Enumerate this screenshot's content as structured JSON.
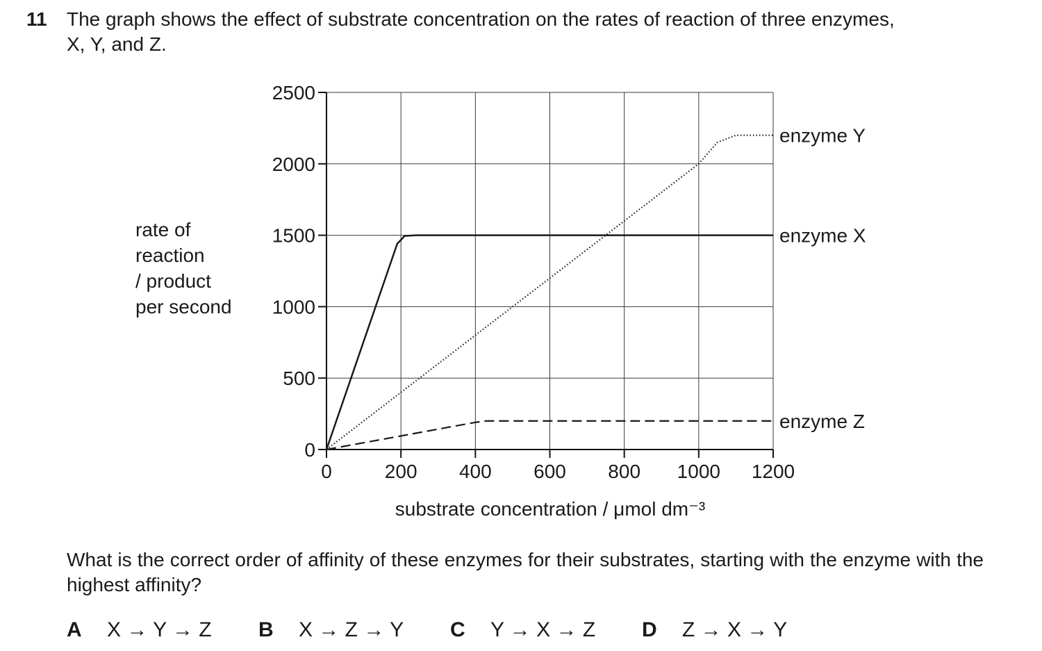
{
  "question": {
    "number": "11",
    "line1": "The graph shows the effect of substrate concentration on the rates of reaction of three enzymes,",
    "line2": "X, Y, and Z.",
    "stem": "What is the correct order of affinity of these enzymes for their substrates, starting with the enzyme with the highest affinity?",
    "options": [
      {
        "letter": "A",
        "text": "X → Y → Z"
      },
      {
        "letter": "B",
        "text": "X → Z → Y"
      },
      {
        "letter": "C",
        "text": "Y → X → Z"
      },
      {
        "letter": "D",
        "text": "Z → X → Y"
      }
    ]
  },
  "chart_data": {
    "type": "line",
    "title": "",
    "xlabel": "substrate concentration / μmol dm⁻³",
    "ylabel_lines": [
      "rate of",
      "reaction",
      "/ product",
      "per second"
    ],
    "xlim": [
      0,
      1200
    ],
    "ylim": [
      0,
      2500
    ],
    "xticks": [
      0,
      200,
      400,
      600,
      800,
      1000,
      1200
    ],
    "yticks": [
      0,
      500,
      1000,
      1500,
      2000,
      2500
    ],
    "grid": true,
    "series": [
      {
        "name": "enzyme Y",
        "style": "dotted",
        "points": [
          [
            0,
            0
          ],
          [
            1000,
            2000
          ],
          [
            1050,
            2150
          ],
          [
            1100,
            2200
          ],
          [
            1200,
            2200
          ]
        ]
      },
      {
        "name": "enzyme X",
        "style": "solid",
        "points": [
          [
            0,
            0
          ],
          [
            190,
            1440
          ],
          [
            210,
            1495
          ],
          [
            240,
            1500
          ],
          [
            1200,
            1500
          ]
        ]
      },
      {
        "name": "enzyme Z",
        "style": "dashed",
        "points": [
          [
            0,
            0
          ],
          [
            400,
            190
          ],
          [
            430,
            200
          ],
          [
            1200,
            200
          ]
        ]
      }
    ]
  }
}
